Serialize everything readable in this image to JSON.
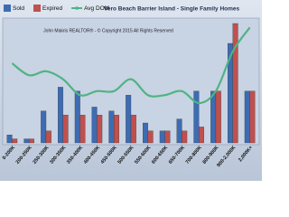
{
  "chart_data": {
    "type": "bar-line",
    "title": "Vero Beach Barrier Island - Single Family Homes",
    "annotation": "John Makris REALTOR® - © Copyright 2015 All Rights Reserved",
    "categories": [
      "0-200K",
      "200-250K",
      "250-300K",
      "300-350K",
      "350-400K",
      "400-450K",
      "450-500K",
      "500-550K",
      "550-600K",
      "600-650K",
      "650-700K",
      "700-800K",
      "800-900K",
      "900-2,000K",
      "2,000K+"
    ],
    "series": [
      {
        "name": "Sold",
        "color": "#3d6cb3",
        "values": [
          2,
          1,
          8,
          14,
          13,
          9,
          8,
          12,
          5,
          3,
          6,
          13,
          13,
          25,
          13
        ]
      },
      {
        "name": "Expired",
        "color": "#c0504d",
        "values": [
          1,
          1,
          3,
          7,
          7,
          7,
          7,
          7,
          3,
          3,
          3,
          4,
          13,
          30,
          13
        ]
      },
      {
        "name": "Avg DOM",
        "color": "#4fb383",
        "axis": "y2",
        "values": [
          20,
          17,
          18,
          16,
          12,
          13,
          13,
          16,
          12,
          12,
          13,
          10,
          13,
          23,
          29
        ]
      }
    ],
    "ylim": [
      0,
      30
    ],
    "y2lim": [
      0,
      30
    ]
  }
}
